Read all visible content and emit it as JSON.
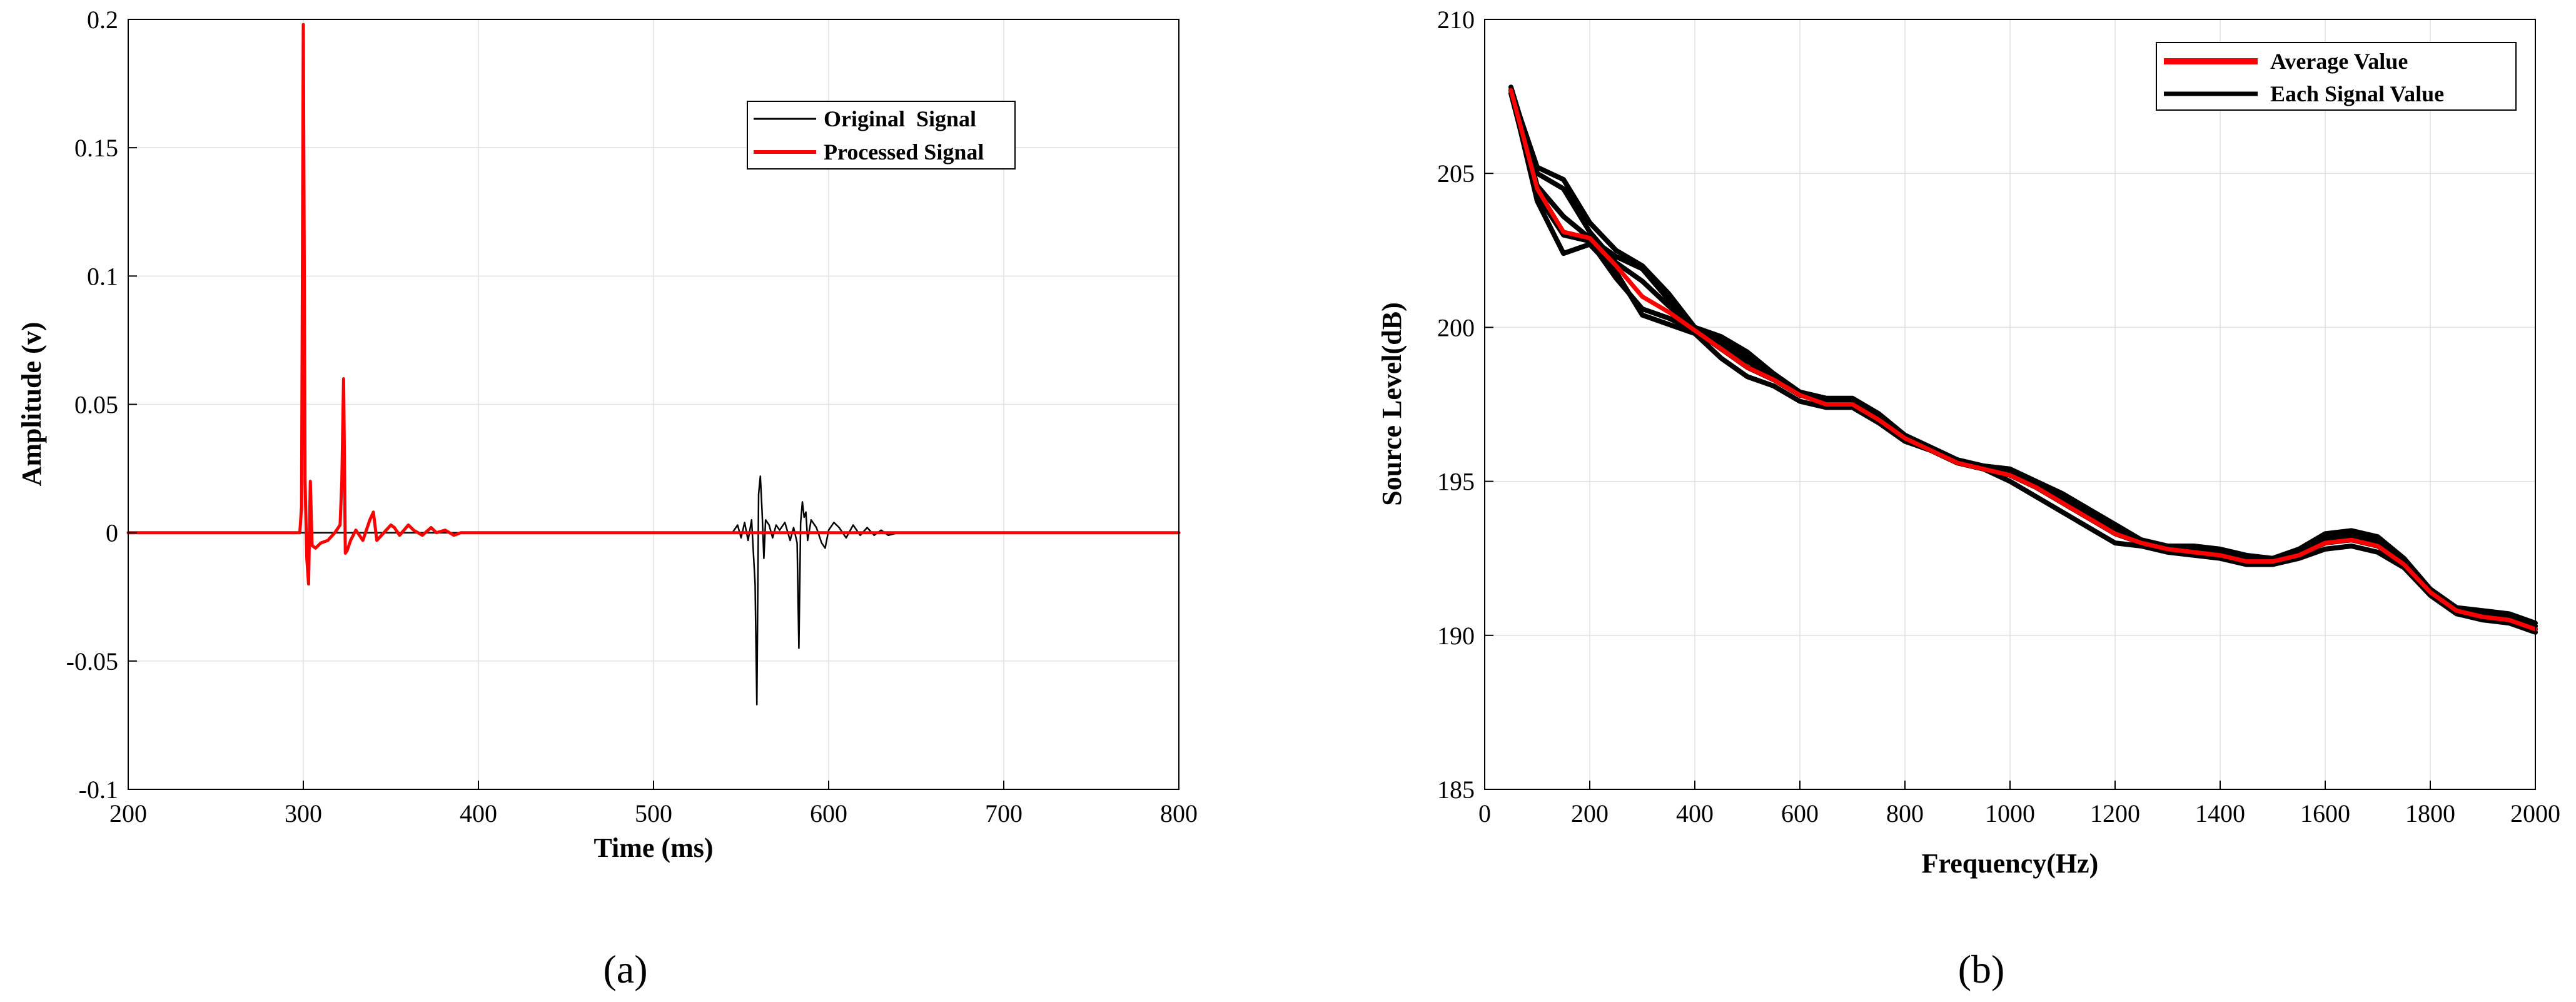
{
  "chart_data": [
    {
      "id": "a",
      "type": "line",
      "caption": "(a)",
      "xlabel": "Time (ms)",
      "ylabel": "Amplitude (v)",
      "xlim": [
        200,
        800
      ],
      "ylim": [
        -0.1,
        0.2
      ],
      "xticks": [
        200,
        300,
        400,
        500,
        600,
        700,
        800
      ],
      "xtick_labels": [
        "200",
        "300",
        "400",
        "500",
        "600",
        "700",
        "800"
      ],
      "yticks": [
        -0.1,
        -0.05,
        0,
        0.05,
        0.1,
        0.15,
        0.2
      ],
      "ytick_labels": [
        "-0.1",
        "-0.05",
        "0",
        "0.05",
        "0.1",
        "0.15",
        "0.2"
      ],
      "grid": true,
      "legend_position": "upper-right",
      "series": [
        {
          "name": "Original  Signal",
          "color": "#000000",
          "x": [
            200,
            545,
            548,
            550,
            552,
            554,
            556,
            558,
            559,
            560,
            561,
            562,
            563,
            564,
            566,
            568,
            570,
            572,
            575,
            578,
            580,
            582,
            583,
            584,
            585,
            586,
            587,
            588,
            590,
            593,
            596,
            598,
            600,
            603,
            606,
            610,
            614,
            618,
            622,
            626,
            630,
            634,
            640,
            800
          ],
          "values": [
            0,
            0,
            0.003,
            -0.002,
            0.004,
            -0.003,
            0.005,
            -0.02,
            -0.067,
            0.015,
            0.022,
            0.008,
            -0.01,
            0.005,
            0.003,
            -0.002,
            0.003,
            0.001,
            0.004,
            -0.003,
            0.002,
            -0.004,
            -0.045,
            0.004,
            0.012,
            0.006,
            0.008,
            -0.003,
            0.005,
            0.002,
            -0.004,
            -0.006,
            0.001,
            0.004,
            0.002,
            -0.002,
            0.003,
            -0.001,
            0.002,
            -0.001,
            0.001,
            -0.001,
            0,
            0
          ]
        },
        {
          "name": "Processed Signal",
          "color": "#ff0000",
          "x": [
            200,
            298,
            299,
            300,
            301,
            302,
            303,
            304,
            305,
            307,
            310,
            314,
            318,
            321,
            322,
            323,
            324,
            325,
            327,
            330,
            334,
            338,
            340,
            342,
            346,
            350,
            352,
            355,
            360,
            363,
            368,
            373,
            376,
            381,
            386,
            390,
            800
          ],
          "values": [
            0,
            0,
            0.01,
            0.198,
            0.02,
            -0.01,
            -0.02,
            0.02,
            -0.005,
            -0.006,
            -0.004,
            -0.003,
            0,
            0.003,
            0.02,
            0.06,
            -0.008,
            -0.007,
            -0.003,
            0.001,
            -0.003,
            0.005,
            0.008,
            -0.003,
            0,
            0.003,
            0.002,
            -0.001,
            0.003,
            0.001,
            -0.001,
            0.002,
            0,
            0.001,
            -0.001,
            0,
            0
          ]
        }
      ]
    },
    {
      "id": "b",
      "type": "line",
      "caption": "(b)",
      "xlabel": "Frequency(Hz)",
      "ylabel": "Source Level(dB)",
      "xlim": [
        0,
        2000
      ],
      "ylim": [
        185,
        210
      ],
      "xticks": [
        0,
        200,
        400,
        600,
        800,
        1000,
        1200,
        1400,
        1600,
        1800,
        2000
      ],
      "xtick_labels": [
        "0",
        "200",
        "400",
        "600",
        "800",
        "1000",
        "1200",
        "1400",
        "1600",
        "1800",
        "2000"
      ],
      "yticks": [
        185,
        190,
        195,
        200,
        205,
        210
      ],
      "ytick_labels": [
        "185",
        "190",
        "195",
        "200",
        "205",
        "210"
      ],
      "grid": true,
      "legend_position": "upper-right",
      "legend": [
        {
          "label": "Average Value",
          "color": "#ff0000"
        },
        {
          "label": "Each Signal Value",
          "color": "#000000"
        }
      ],
      "x": [
        50,
        100,
        150,
        200,
        250,
        300,
        350,
        400,
        450,
        500,
        550,
        600,
        650,
        700,
        750,
        800,
        850,
        900,
        950,
        1000,
        1050,
        1100,
        1150,
        1200,
        1250,
        1300,
        1350,
        1400,
        1450,
        1500,
        1550,
        1600,
        1650,
        1700,
        1750,
        1800,
        1850,
        1900,
        1950,
        2000
      ],
      "series": [
        {
          "name": "Each Signal Value",
          "color": "#000000",
          "values": [
            207.7,
            204.1,
            202.4,
            202.7,
            201.8,
            200.4,
            200.1,
            199.8,
            199.0,
            198.4,
            198.1,
            197.6,
            197.4,
            197.4,
            196.9,
            196.3,
            196.0,
            195.6,
            195.4,
            195.0,
            194.5,
            194.0,
            193.5,
            193.0,
            192.9,
            192.7,
            192.6,
            192.5,
            192.3,
            192.3,
            192.5,
            192.8,
            192.9,
            192.7,
            192.2,
            191.3,
            190.7,
            190.5,
            190.4,
            190.1
          ]
        },
        {
          "name": "Each Signal Value",
          "color": "#000000",
          "values": [
            207.7,
            205.2,
            204.8,
            203.4,
            202.5,
            202.0,
            201.1,
            200.0,
            199.7,
            199.2,
            198.5,
            197.9,
            197.7,
            197.7,
            197.2,
            196.5,
            196.0,
            195.6,
            195.5,
            195.4,
            195.0,
            194.6,
            194.1,
            193.6,
            193.1,
            192.9,
            192.9,
            192.8,
            192.6,
            192.5,
            192.8,
            193.3,
            193.4,
            193.2,
            192.5,
            191.5,
            190.9,
            190.8,
            190.7,
            190.4
          ]
        },
        {
          "name": "Each Signal Value",
          "color": "#000000",
          "values": [
            207.6,
            204.3,
            203.0,
            202.8,
            201.6,
            200.6,
            200.3,
            199.9,
            199.3,
            198.7,
            198.3,
            197.8,
            197.6,
            197.5,
            197.0,
            196.4,
            196.0,
            195.6,
            195.4,
            195.2,
            194.8,
            194.3,
            193.8,
            193.3,
            193.0,
            192.8,
            192.7,
            192.6,
            192.4,
            192.4,
            192.6,
            193.0,
            193.1,
            192.9,
            192.3,
            191.4,
            190.8,
            190.6,
            190.5,
            190.2
          ]
        },
        {
          "name": "Each Signal Value",
          "color": "#000000",
          "values": [
            207.8,
            205.0,
            204.5,
            203.1,
            202.1,
            201.5,
            200.7,
            200.0,
            199.5,
            198.9,
            198.4,
            197.9,
            197.6,
            197.6,
            197.1,
            196.5,
            196.1,
            195.7,
            195.5,
            195.4,
            194.9,
            194.5,
            194.0,
            193.5,
            193.1,
            192.9,
            192.8,
            192.7,
            192.5,
            192.4,
            192.7,
            193.2,
            193.3,
            193.1,
            192.4,
            191.5,
            190.9,
            190.7,
            190.6,
            190.3
          ]
        },
        {
          "name": "Each Signal Value",
          "color": "#000000",
          "values": [
            207.7,
            204.6,
            203.6,
            202.9,
            202.3,
            201.9,
            200.9,
            199.9,
            199.6,
            199.0,
            198.4,
            197.8,
            197.6,
            197.5,
            197.1,
            196.4,
            196.0,
            195.6,
            195.4,
            195.3,
            194.9,
            194.4,
            193.9,
            193.4,
            193.0,
            192.9,
            192.8,
            192.6,
            192.4,
            192.4,
            192.6,
            193.1,
            193.2,
            193.0,
            192.4,
            191.4,
            190.8,
            190.6,
            190.5,
            190.2
          ]
        },
        {
          "name": "Average Value",
          "color": "#ff0000",
          "values": [
            207.7,
            204.5,
            203.1,
            202.9,
            202.0,
            201.0,
            200.5,
            199.9,
            199.3,
            198.7,
            198.3,
            197.8,
            197.5,
            197.5,
            197.0,
            196.4,
            196.0,
            195.6,
            195.4,
            195.2,
            194.8,
            194.3,
            193.8,
            193.3,
            193.0,
            192.8,
            192.7,
            192.6,
            192.4,
            192.4,
            192.6,
            193.0,
            193.1,
            192.9,
            192.3,
            191.4,
            190.8,
            190.6,
            190.5,
            190.2
          ]
        }
      ]
    }
  ]
}
